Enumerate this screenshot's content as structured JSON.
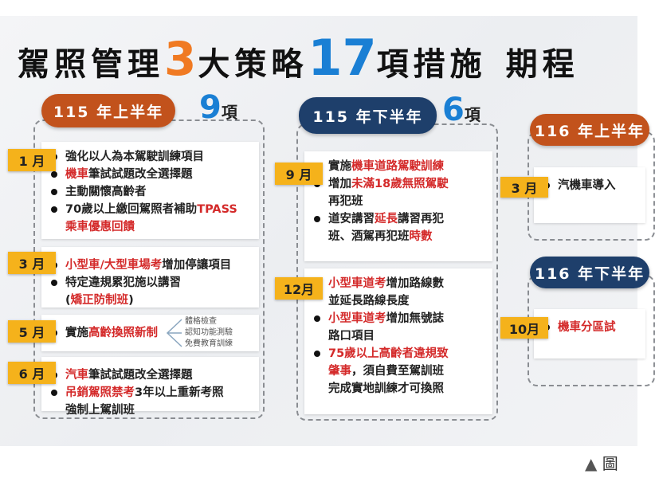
{
  "title": {
    "part1": "駕照管理",
    "num1": "3",
    "part2": "大策略",
    "num2": "17",
    "part3": "項措施",
    "part4": "期程"
  },
  "colors": {
    "accent_orange": "#f07a22",
    "accent_blue": "#1a7fd4",
    "pill_orange": "#c2521c",
    "pill_navy": "#1e3f6b",
    "month_label": "#f5b21b",
    "highlight_red": "#d42a2a"
  },
  "columns": [
    {
      "period": "115 年上半年",
      "count": "9",
      "count_unit": "項",
      "entries": [
        {
          "month": "1 月",
          "bullets": [
            [
              {
                "t": "強化以人為本駕駛訓練項目"
              }
            ],
            [
              {
                "t": "機車",
                "r": 1
              },
              {
                "t": "筆試試題改全選擇題"
              }
            ],
            [
              {
                "t": "主動關懷高齡者"
              }
            ],
            [
              {
                "t": "70歲以上繳回駕照者補助"
              },
              {
                "t": "TPASS",
                "r": 1
              }
            ],
            [
              {
                "t": "乘車優惠回饋",
                "r": 1
              }
            ]
          ]
        },
        {
          "month": "3 月",
          "bullets": [
            [
              {
                "t": "小型車/大型車場考",
                "r": 1
              },
              {
                "t": "增加停讓項目"
              }
            ],
            [
              {
                "t": "特定違規累犯施以講習"
              }
            ],
            [
              {
                "t": "("
              },
              {
                "t": "矯正防制班",
                "r": 1
              },
              {
                "t": ")"
              }
            ]
          ]
        },
        {
          "month": "5 月",
          "bullets": [
            [
              {
                "t": "實施"
              },
              {
                "t": "高齡換照新制",
                "r": 1
              }
            ]
          ],
          "subitems": [
            "體格檢查",
            "認知功能測驗",
            "免費教育訓練"
          ]
        },
        {
          "month": "6 月",
          "bullets": [
            [
              {
                "t": "汽車",
                "r": 1
              },
              {
                "t": "筆試試題改全選擇題"
              }
            ],
            [
              {
                "t": "吊銷駕照禁考",
                "r": 1
              },
              {
                "t": "3年以上重新考照"
              }
            ],
            [
              {
                "t": "強制上駕訓班"
              }
            ]
          ]
        }
      ]
    },
    {
      "period": "115 年下半年",
      "count": "6",
      "count_unit": "項",
      "entries": [
        {
          "month": "9 月",
          "bullets": [
            [
              {
                "t": "實施"
              },
              {
                "t": "機車道路駕駛訓練",
                "r": 1
              }
            ],
            [
              {
                "t": "增加"
              },
              {
                "t": "未滿18歲無照駕駛",
                "r": 1
              }
            ],
            [
              {
                "t": "再犯班"
              }
            ],
            [
              {
                "t": "道安講習"
              },
              {
                "t": "延長",
                "r": 1
              },
              {
                "t": "講習再犯"
              }
            ],
            [
              {
                "t": "班、酒駕再犯班"
              },
              {
                "t": "時數",
                "r": 1
              }
            ]
          ]
        },
        {
          "month": "12月",
          "bullets": [
            [
              {
                "t": "小型車道考",
                "r": 1
              },
              {
                "t": "增加路線數"
              }
            ],
            [
              {
                "t": "並延長路線長度"
              }
            ],
            [
              {
                "t": "小型車道考",
                "r": 1
              },
              {
                "t": "增加無號誌"
              }
            ],
            [
              {
                "t": "路口項目"
              }
            ],
            [
              {
                "t": "75歲以上高齡者違規致",
                "r": 1
              }
            ],
            [
              {
                "t": "肇事",
                "r": 1
              },
              {
                "t": "，須自費至駕訓班"
              }
            ],
            [
              {
                "t": "完成實地訓練才可換照"
              }
            ]
          ]
        }
      ]
    },
    {
      "period": "116 年上半年",
      "entries": [
        {
          "month": "3 月",
          "bullets": [
            [
              {
                "t": "汽機車導入"
              }
            ]
          ]
        }
      ]
    },
    {
      "period": "116 年下半年",
      "entries": [
        {
          "month": "10月",
          "bullets": [
            [
              {
                "t": "機車分區試",
                "r": 1
              }
            ]
          ]
        }
      ]
    }
  ],
  "caption": {
    "icon": "triangle-up-icon",
    "text": "圖"
  }
}
